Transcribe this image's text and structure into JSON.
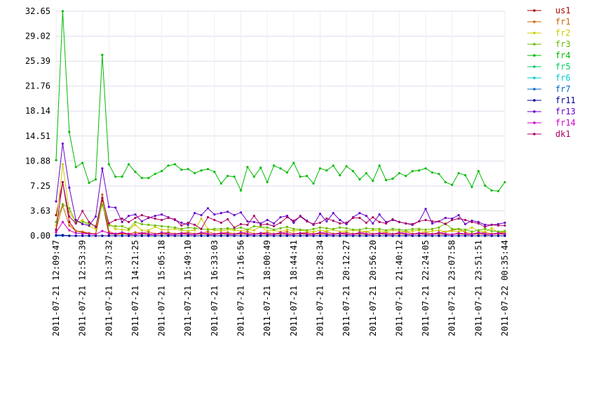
{
  "chart_data": {
    "type": "line",
    "categories": [
      "2011-07-21 12:09:47",
      null,
      null,
      null,
      "2011-07-21 12:53:39",
      null,
      null,
      null,
      "2011-07-21 13:37:32",
      null,
      null,
      null,
      "2011-07-21 14:21:25",
      null,
      null,
      null,
      "2011-07-21 15:05:18",
      null,
      null,
      null,
      "2011-07-21 15:49:10",
      null,
      null,
      null,
      "2011-07-21 16:33:03",
      null,
      null,
      null,
      "2011-07-21 17:16:56",
      null,
      null,
      null,
      "2011-07-21 18:00:49",
      null,
      null,
      null,
      "2011-07-21 18:44:41",
      null,
      null,
      null,
      "2011-07-21 19:28:34",
      null,
      null,
      null,
      "2011-07-21 20:12:27",
      null,
      null,
      null,
      "2011-07-21 20:56:20",
      null,
      null,
      null,
      "2011-07-21 21:40:12",
      null,
      null,
      null,
      "2011-07-21 22:24:05",
      null,
      null,
      null,
      "2011-07-21 23:07:58",
      null,
      null,
      null,
      "2011-07-21 23:51:51",
      null,
      null,
      null,
      "2011-07-22 00:35:44"
    ],
    "ylim": [
      0,
      32.65
    ],
    "yticks": [
      {
        "value": 0,
        "label": "0.00"
      },
      {
        "value": 3.63,
        "label": "3.63"
      },
      {
        "value": 7.25,
        "label": "7.25"
      },
      {
        "value": 10.88,
        "label": "10.88"
      },
      {
        "value": 14.51,
        "label": "14.51"
      },
      {
        "value": 18.14,
        "label": "18.14"
      },
      {
        "value": 21.76,
        "label": "21.76"
      },
      {
        "value": 25.39,
        "label": "25.39"
      },
      {
        "value": 29.02,
        "label": "29.02"
      },
      {
        "value": 32.65,
        "label": "32.65"
      }
    ],
    "grid": true,
    "legend": "right",
    "series": [
      {
        "name": "us1",
        "color": "#aa0000",
        "values": [
          3,
          7.8,
          2,
          0.7,
          0.5,
          0.3,
          0.2,
          5,
          0.3,
          0.2,
          0.3,
          0.2,
          0.2,
          0.3,
          0.2,
          0.2,
          0.3,
          0.2,
          0.2,
          0.3,
          0.2,
          0.2,
          0.3,
          0.2,
          0.2,
          0.3,
          0.2,
          0.2,
          0.3,
          0.2,
          0.2,
          0.3,
          0.2,
          0.2,
          0.3,
          0.2,
          0.2,
          0.3,
          0.2,
          0.2,
          0.3,
          0.2,
          0.2,
          0.3,
          0.2,
          0.2,
          0.3,
          0.2,
          0.2,
          0.3,
          0.2,
          0.2,
          0.3,
          0.2,
          0.2,
          0.3,
          0.2,
          0.2,
          0.3,
          0.2,
          0.2,
          0.3,
          0.2,
          0.2,
          0.3,
          0.2,
          0.2,
          0.3,
          0.2
        ]
      },
      {
        "name": "fr1",
        "color": "#cc6600",
        "values": [
          1,
          4.4,
          1.5,
          0.7,
          0.6,
          0.4,
          0.3,
          6,
          0.6,
          0.3,
          0.4,
          0.3,
          0.5,
          0.4,
          0.6,
          0.3,
          0.4,
          0.5,
          0.3,
          0.4,
          0.5,
          0.3,
          0.4,
          0.6,
          0.3,
          0.4,
          0.5,
          0.3,
          0.4,
          0.6,
          0.3,
          0.4,
          0.5,
          0.3,
          0.4,
          0.6,
          0.3,
          0.4,
          0.5,
          0.3,
          0.4,
          0.6,
          0.3,
          0.4,
          0.5,
          0.3,
          0.4,
          0.6,
          0.3,
          0.4,
          0.5,
          0.3,
          0.4,
          0.6,
          0.3,
          0.4,
          0.5,
          0.3,
          0.4,
          0.6,
          0.8,
          1,
          0.5,
          0.3,
          0.4,
          0.5,
          0.3,
          0.4,
          0.5
        ]
      },
      {
        "name": "fr2",
        "color": "#cccc00",
        "values": [
          1.5,
          10.4,
          3.5,
          1.9,
          2.3,
          1.4,
          1,
          4.8,
          1.8,
          1,
          0.9,
          0.8,
          1.6,
          0.8,
          0.8,
          1.3,
          0.9,
          0.9,
          1,
          0.8,
          0.7,
          0.8,
          2.5,
          1,
          0.8,
          0.7,
          0.9,
          0.8,
          0.7,
          0.9,
          0.8,
          1.4,
          0.7,
          0.8,
          0.6,
          0.9,
          0.7,
          0.8,
          0.7,
          0.6,
          0.8,
          0.7,
          0.9,
          0.6,
          0.7,
          0.8,
          0.7,
          0.6,
          0.8,
          0.7,
          0.6,
          0.8,
          0.7,
          0.6,
          0.7,
          0.8,
          0.6,
          0.7,
          0.8,
          0.6,
          0.7,
          0.6,
          0.8,
          1.2,
          0.7,
          0.6,
          1.1,
          0.5,
          0.6
        ]
      },
      {
        "name": "fr3",
        "color": "#66bb00",
        "values": [
          2,
          4.6,
          4,
          2,
          2,
          1.8,
          1.4,
          4.5,
          1.5,
          1.4,
          1.4,
          1,
          2,
          1.7,
          1.6,
          1.5,
          1.4,
          1.3,
          1.2,
          1,
          1.2,
          1.1,
          1,
          0.9,
          1,
          1,
          1.1,
          1,
          1.2,
          0.9,
          1.4,
          1.3,
          1.2,
          0.9,
          1.1,
          1.3,
          1,
          0.9,
          0.8,
          1,
          1.2,
          1.1,
          1,
          1.2,
          1.1,
          0.9,
          0.9,
          1.1,
          1,
          1,
          0.8,
          1,
          0.9,
          0.8,
          1,
          1,
          0.9,
          1,
          1.2,
          1.8,
          1,
          1,
          0.9,
          0.6,
          0.8,
          1,
          0.7,
          0.6,
          0.7
        ]
      },
      {
        "name": "fr4",
        "color": "#00bb00",
        "values": [
          11,
          32.65,
          15.1,
          10,
          10.6,
          7.7,
          8.2,
          26.3,
          10.4,
          8.6,
          8.6,
          10.4,
          9.3,
          8.4,
          8.4,
          9,
          9.4,
          10.2,
          10.4,
          9.6,
          9.7,
          9.1,
          9.5,
          9.7,
          9.3,
          7.6,
          8.7,
          8.6,
          6.6,
          10,
          8.6,
          9.9,
          7.8,
          10.2,
          9.8,
          9.2,
          10.6,
          8.6,
          8.7,
          7.6,
          9.8,
          9.5,
          10.2,
          8.8,
          10.1,
          9.4,
          8.2,
          9.1,
          8,
          10.2,
          8.1,
          8.3,
          9.1,
          8.7,
          9.4,
          9.5,
          9.8,
          9.2,
          9,
          7.8,
          7.4,
          9.1,
          8.8,
          7.1,
          9.4,
          7.3,
          6.6,
          6.5,
          7.8
        ]
      },
      {
        "name": "fr5",
        "color": "#00cc66",
        "values": [
          0,
          0,
          0,
          0,
          0,
          0,
          0,
          0,
          0,
          0,
          0,
          0,
          0,
          0,
          0,
          0,
          0,
          0,
          0,
          0,
          0,
          0,
          0,
          0,
          0,
          0,
          0,
          0,
          0,
          0,
          0,
          0,
          0,
          0,
          0,
          0,
          0,
          0,
          0,
          0,
          0,
          0,
          0,
          0,
          0,
          0,
          0,
          0,
          0,
          0,
          0,
          0,
          0,
          0,
          0,
          0,
          0,
          0,
          0,
          0,
          0,
          0,
          0,
          0,
          0,
          0,
          0,
          0,
          0
        ]
      },
      {
        "name": "fr6",
        "color": "#00cccc",
        "values": [
          0,
          0,
          0,
          0,
          0,
          0,
          0,
          0,
          0,
          0,
          0,
          0,
          0,
          0,
          0,
          0,
          0,
          0,
          0,
          0,
          0,
          0,
          0,
          0,
          0,
          0,
          0,
          0,
          0,
          0,
          0,
          0,
          0,
          0,
          0,
          0,
          0,
          0,
          0,
          0,
          0,
          0,
          0,
          0,
          0,
          0,
          0,
          0,
          0,
          0,
          0,
          0,
          0,
          0,
          0,
          0,
          0,
          0,
          0,
          0,
          0,
          0,
          0,
          0,
          0,
          0,
          0,
          0,
          0
        ]
      },
      {
        "name": "fr7",
        "color": "#0066cc",
        "values": [
          0,
          0,
          0,
          0,
          0,
          0,
          0,
          0,
          0,
          0,
          0,
          0,
          0,
          0,
          0,
          0,
          0,
          0,
          0,
          0,
          0,
          0,
          0,
          0,
          0,
          0,
          0,
          0,
          0,
          0,
          0,
          0,
          0,
          0,
          0,
          0,
          0,
          0,
          0,
          0,
          0,
          0,
          0,
          0,
          0,
          0,
          0,
          0,
          0,
          0,
          0,
          0,
          0,
          0,
          0,
          0,
          0,
          0,
          0,
          0,
          0,
          0,
          0,
          0,
          0,
          0,
          0,
          0,
          0
        ]
      },
      {
        "name": "fr11",
        "color": "#000099",
        "values": [
          0.1,
          0.1,
          0,
          0,
          0,
          0,
          0,
          0,
          0,
          0,
          0,
          0,
          0,
          0,
          0,
          0,
          0,
          0,
          0,
          0,
          0,
          0,
          0,
          0,
          0,
          0,
          0,
          0,
          0,
          0,
          0,
          0,
          0,
          0,
          0,
          0,
          0,
          0,
          0,
          0,
          0,
          0,
          0,
          0,
          0,
          0,
          0,
          0,
          0,
          0,
          0,
          0,
          0,
          0,
          0,
          0,
          0,
          0,
          0,
          0,
          0,
          0,
          0,
          0,
          0,
          0,
          0,
          0,
          0
        ]
      },
      {
        "name": "fr13",
        "color": "#6600cc",
        "values": [
          5,
          13.4,
          7,
          2.3,
          1.7,
          1.5,
          2.8,
          9.8,
          4.2,
          4.1,
          2,
          2.9,
          3.1,
          2.1,
          2.6,
          2.9,
          3.1,
          2.7,
          2.3,
          1.9,
          1.6,
          3.3,
          3,
          4,
          3.1,
          3.3,
          3.5,
          3,
          3.4,
          2.1,
          2,
          1.8,
          2.3,
          1.8,
          2.7,
          2.9,
          1.9,
          2.9,
          2.2,
          1.6,
          3.2,
          2.1,
          3.3,
          2.3,
          1.7,
          2.7,
          3.3,
          2.9,
          1.8,
          3.1,
          2,
          2.3,
          2,
          1.8,
          1.6,
          2.1,
          3.9,
          1.8,
          2.1,
          2.6,
          2.5,
          3,
          1.7,
          2.2,
          2,
          1.6,
          1.6,
          1.7,
          1.9
        ]
      },
      {
        "name": "fr14",
        "color": "#cc00cc",
        "values": [
          0.5,
          2,
          0.8,
          0.4,
          0.3,
          0.3,
          0.2,
          0.7,
          0.4,
          0.3,
          0.5,
          0.3,
          0.2,
          0.4,
          0.3,
          0.2,
          0.5,
          0.3,
          0.2,
          0.4,
          0.3,
          0.2,
          0.5,
          0.3,
          0.2,
          0.4,
          0.3,
          0.2,
          0.5,
          0.3,
          0.2,
          0.4,
          0.3,
          0.2,
          0.5,
          0.3,
          0.2,
          0.4,
          0.3,
          0.2,
          0.5,
          0.3,
          0.2,
          0.4,
          0.3,
          0.2,
          0.5,
          0.3,
          0.2,
          0.4,
          0.3,
          0.2,
          0.5,
          0.3,
          0.2,
          0.4,
          0.3,
          0.2,
          0.5,
          0.3,
          0.2,
          0.4,
          0.3,
          0.2,
          0.5,
          0.3,
          0.2,
          0.4,
          0.3
        ]
      },
      {
        "name": "dk1",
        "color": "#aa0066",
        "values": [
          0.8,
          7.8,
          2.8,
          1.8,
          3.6,
          2,
          1.3,
          5.5,
          1.8,
          2.3,
          2.5,
          2,
          2.6,
          3,
          2.7,
          2.5,
          2.3,
          2.6,
          2.4,
          1.5,
          1.9,
          1.6,
          1,
          2.7,
          2.3,
          1.9,
          2.4,
          1.2,
          1.7,
          1.6,
          2.9,
          1.6,
          1.7,
          1.4,
          1.9,
          2.7,
          2.2,
          2.8,
          2.1,
          1.7,
          1.9,
          2.5,
          2.2,
          1.8,
          1.9,
          2.6,
          2.6,
          1.9,
          2.7,
          2,
          1.8,
          2.4,
          2,
          1.8,
          1.7,
          2.1,
          2.3,
          2.1,
          2.1,
          1.7,
          2.3,
          2.5,
          2.3,
          2,
          1.8,
          1.3,
          1.6,
          1.5,
          1.5
        ]
      }
    ]
  }
}
